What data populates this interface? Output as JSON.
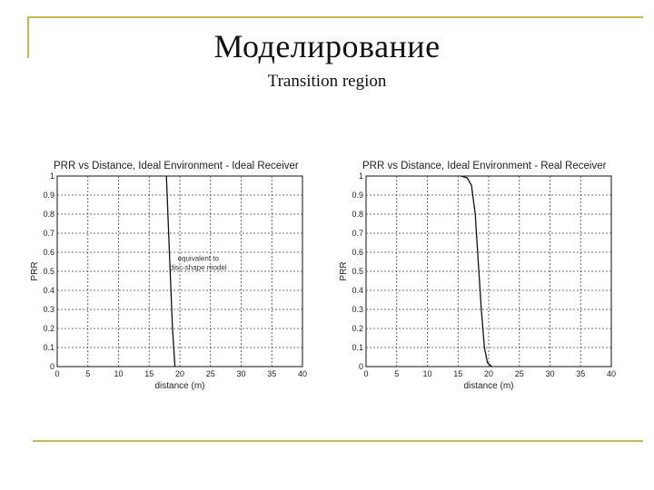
{
  "slide": {
    "title": "Моделирование",
    "subtitle": "Transition region"
  },
  "chart_data": [
    {
      "type": "line",
      "title": "PRR vs Distance, Ideal Environment - Ideal Receiver",
      "xlabel": "distance (m)",
      "ylabel": "PRR",
      "xlim": [
        0,
        40
      ],
      "ylim": [
        0,
        1
      ],
      "grid": true,
      "xticks": [
        "0",
        "5",
        "10",
        "15",
        "20",
        "25",
        "30",
        "35",
        "40"
      ],
      "yticks": [
        "0",
        "0.1",
        "0.2",
        "0.3",
        "0.4",
        "0.5",
        "0.6",
        "0.7",
        "0.8",
        "0.9",
        "1"
      ],
      "annotation": [
        "equivalent to",
        "disc-shape model"
      ],
      "series": [
        {
          "color": "#111111",
          "x": [
            17.8,
            18.3,
            18.8,
            19.2
          ],
          "y": [
            1.0,
            0.6,
            0.2,
            0.0
          ]
        }
      ]
    },
    {
      "type": "line",
      "title": "PRR vs Distance, Ideal Environment - Real Receiver",
      "xlabel": "distance (m)",
      "ylabel": "PRR",
      "xlim": [
        0,
        40
      ],
      "ylim": [
        0,
        1
      ],
      "grid": true,
      "xticks": [
        "0",
        "5",
        "10",
        "15",
        "20",
        "25",
        "30",
        "35",
        "40"
      ],
      "yticks": [
        "0",
        "0.1",
        "0.2",
        "0.3",
        "0.4",
        "0.5",
        "0.6",
        "0.7",
        "0.8",
        "0.9",
        "1"
      ],
      "annotation": [],
      "series": [
        {
          "color": "#111111",
          "x": [
            15.5,
            16.5,
            17.2,
            17.8,
            18.3,
            18.8,
            19.3,
            19.8,
            20.5
          ],
          "y": [
            1.0,
            0.99,
            0.95,
            0.8,
            0.55,
            0.3,
            0.1,
            0.02,
            0.0
          ]
        }
      ]
    }
  ]
}
